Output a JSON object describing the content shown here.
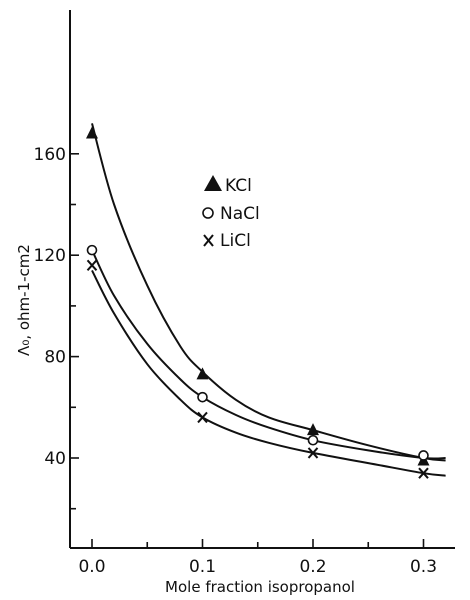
{
  "chart_data": {
    "type": "scatter",
    "title": "",
    "xlabel": "Mole fraction isopropanol",
    "ylabel": "Λ₀, ohm-1-cm2",
    "xlim": [
      -0.02,
      0.32
    ],
    "ylim": [
      15,
      175
    ],
    "x_ticks": [
      "0.0",
      "0.1",
      "0.2",
      "0.3"
    ],
    "x_tick_values": [
      0.0,
      0.1,
      0.2,
      0.3
    ],
    "y_ticks": [
      "40",
      "80",
      "120",
      "160"
    ],
    "y_tick_values": [
      40,
      80,
      120,
      160
    ],
    "legend_position": "upper-center",
    "series": [
      {
        "name": "KCl",
        "marker": "triangle",
        "x": [
          0.0,
          0.1,
          0.2,
          0.3
        ],
        "y": [
          168,
          73,
          51,
          39
        ]
      },
      {
        "name": "NaCl",
        "marker": "circle",
        "x": [
          0.0,
          0.1,
          0.2,
          0.3
        ],
        "y": [
          122,
          64,
          47,
          41
        ]
      },
      {
        "name": "LiCl",
        "marker": "x",
        "x": [
          0.0,
          0.1,
          0.2,
          0.3
        ],
        "y": [
          116,
          56,
          42,
          34
        ]
      }
    ],
    "fit_curves": [
      {
        "series": "KCl",
        "x": [
          0.0,
          0.02,
          0.05,
          0.08,
          0.1,
          0.13,
          0.16,
          0.2,
          0.25,
          0.3,
          0.32
        ],
        "y": [
          172,
          140,
          108,
          84,
          74,
          63,
          56,
          51,
          45,
          40,
          39
        ]
      },
      {
        "series": "NaCl",
        "x": [
          0.0,
          0.02,
          0.05,
          0.08,
          0.1,
          0.13,
          0.16,
          0.2,
          0.25,
          0.3,
          0.32
        ],
        "y": [
          122,
          104,
          85,
          71,
          64,
          57,
          52,
          47,
          43,
          40,
          40
        ]
      },
      {
        "series": "LiCl",
        "x": [
          0.0,
          0.02,
          0.05,
          0.08,
          0.1,
          0.13,
          0.16,
          0.2,
          0.25,
          0.3,
          0.32
        ],
        "y": [
          114,
          97,
          77,
          63,
          56,
          50,
          46,
          42,
          38,
          34,
          33
        ]
      }
    ]
  }
}
